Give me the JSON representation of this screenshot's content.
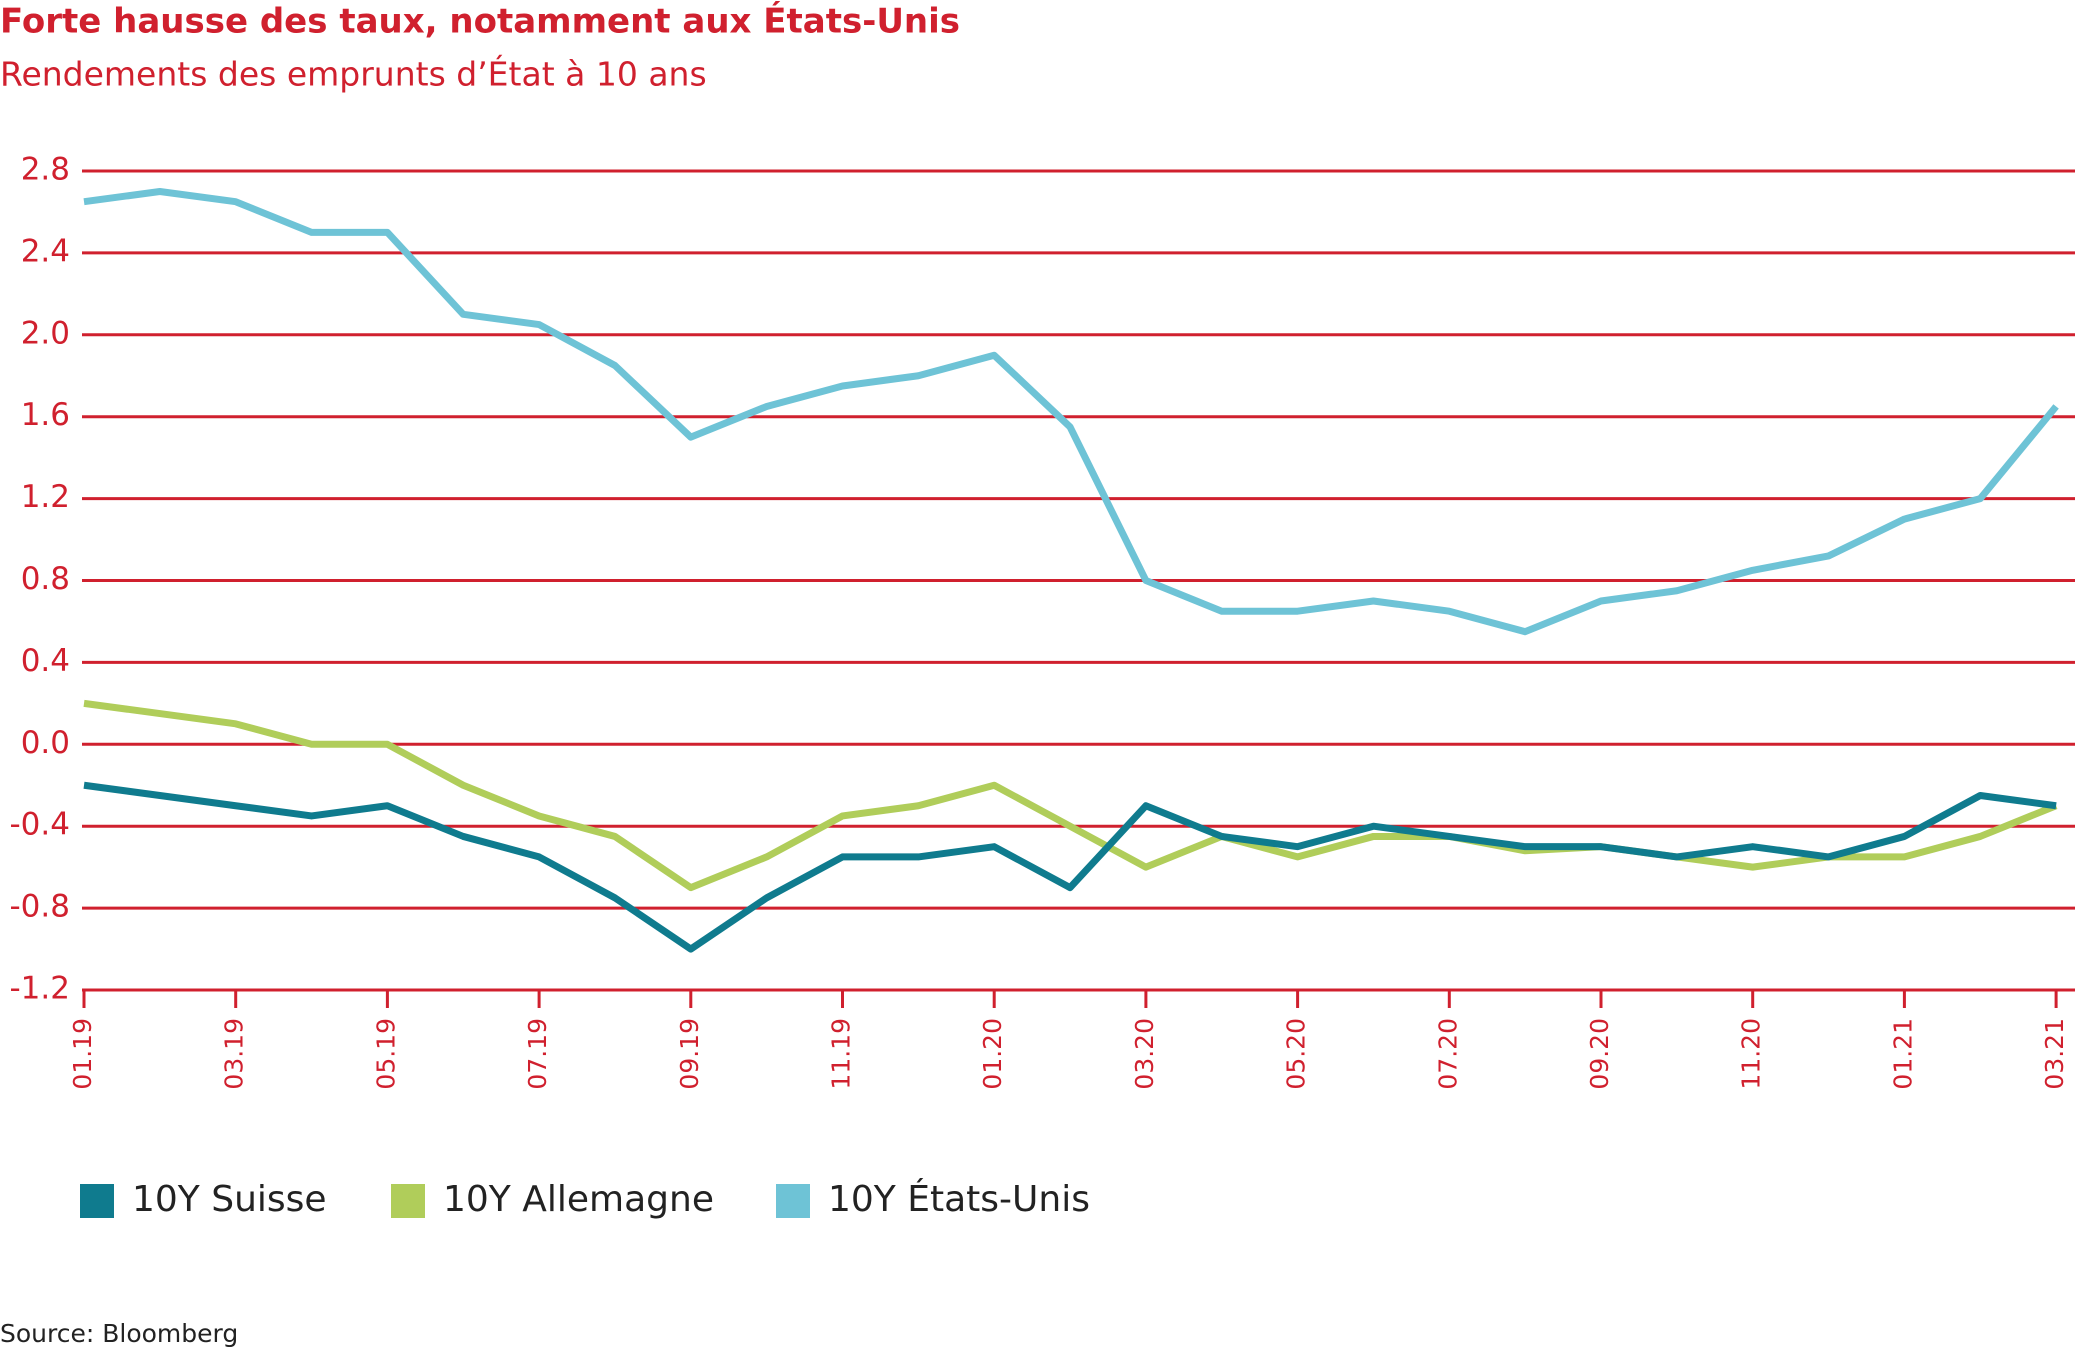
{
  "chart_data": {
    "type": "line",
    "title": "Forte hausse des taux, notamment aux États-Unis",
    "subtitle": "Rendements des emprunts d’État à 10 ans",
    "source": "Source: Bloomberg",
    "categories": [
      "01.19",
      null,
      "03.19",
      null,
      "05.19",
      null,
      "07.19",
      null,
      "09.19",
      null,
      "11.19",
      null,
      "01.20",
      null,
      "03.20",
      null,
      "05.20",
      null,
      "07.20",
      null,
      "09.20",
      null,
      "11.20",
      null,
      "01.21",
      null,
      "03.21"
    ],
    "series": [
      {
        "name": "10Y Suisse",
        "color": "#0f7b8e",
        "values": [
          -0.2,
          -0.25,
          -0.3,
          -0.35,
          -0.3,
          -0.45,
          -0.55,
          -0.75,
          -1.0,
          -0.75,
          -0.55,
          -0.55,
          -0.5,
          -0.7,
          -0.3,
          -0.45,
          -0.5,
          -0.4,
          -0.45,
          -0.5,
          -0.5,
          -0.55,
          -0.5,
          -0.55,
          -0.45,
          -0.25,
          -0.3
        ]
      },
      {
        "name": "10Y Allemagne",
        "color": "#b0cd5a",
        "values": [
          0.2,
          0.15,
          0.1,
          0.0,
          0.0,
          -0.2,
          -0.35,
          -0.45,
          -0.7,
          -0.55,
          -0.35,
          -0.3,
          -0.2,
          -0.4,
          -0.6,
          -0.45,
          -0.55,
          -0.45,
          -0.45,
          -0.52,
          -0.5,
          -0.55,
          -0.6,
          -0.55,
          -0.55,
          -0.45,
          -0.3
        ]
      },
      {
        "name": "10Y États-Unis",
        "color": "#6ec3d6",
        "values": [
          2.65,
          2.7,
          2.65,
          2.5,
          2.5,
          2.1,
          2.05,
          1.85,
          1.5,
          1.65,
          1.75,
          1.8,
          1.9,
          1.55,
          0.8,
          0.65,
          0.65,
          0.7,
          0.65,
          0.55,
          0.7,
          0.75,
          0.85,
          0.92,
          1.1,
          1.2,
          1.65
        ]
      }
    ],
    "ylim": [
      -1.2,
      2.8
    ],
    "yticks": [
      -1.2,
      -0.8,
      -0.4,
      {
        "value": 0,
        "label": "0.0"
      },
      0.4,
      0.8,
      1.2,
      1.6,
      {
        "value": 2,
        "label": "2.0"
      },
      2.4,
      2.8
    ],
    "grid": true,
    "legend": "bottom",
    "axis_color": "#d0202e"
  }
}
